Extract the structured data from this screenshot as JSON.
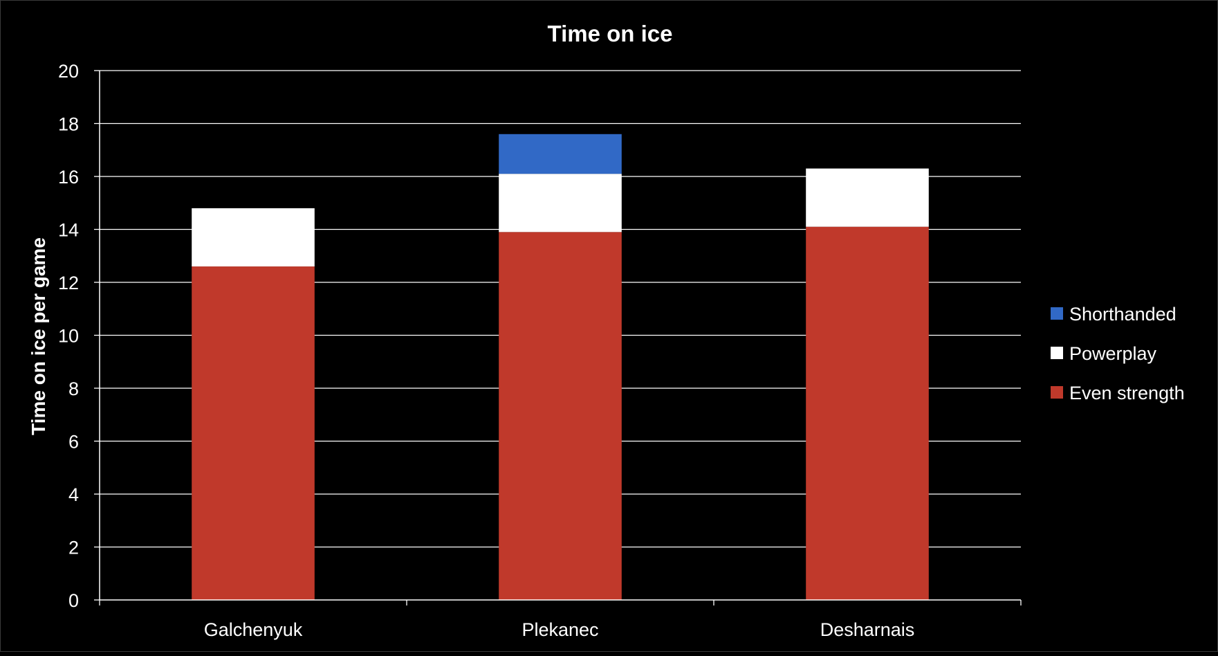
{
  "chart_data": {
    "type": "bar",
    "stacked": true,
    "title": "Time on ice",
    "xlabel": "",
    "ylabel": "Time on ice per game",
    "ylim": [
      0,
      20
    ],
    "yticks": [
      0,
      2,
      4,
      6,
      8,
      10,
      12,
      14,
      16,
      18,
      20
    ],
    "grid": true,
    "legend_position": "right",
    "categories": [
      "Galchenyuk",
      "Plekanec",
      "Desharnais"
    ],
    "series": [
      {
        "name": "Even strength",
        "color": "#C0392B",
        "values": [
          12.6,
          13.9,
          14.1
        ]
      },
      {
        "name": "Powerplay",
        "color": "#FFFFFF",
        "values": [
          2.2,
          2.2,
          2.2
        ]
      },
      {
        "name": "Shorthanded",
        "color": "#3169C6",
        "values": [
          0,
          1.5,
          0
        ]
      }
    ],
    "legend_order": [
      "Shorthanded",
      "Powerplay",
      "Even strength"
    ]
  }
}
